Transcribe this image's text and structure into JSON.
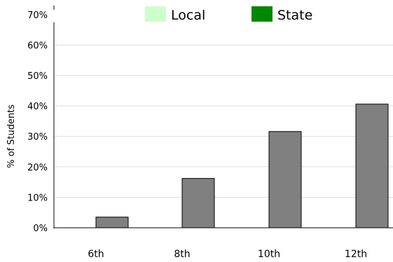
{
  "chart_data": {
    "type": "bar",
    "ylabel": "% of Students",
    "yticks": [
      "0%",
      "10%",
      "20%",
      "30%",
      "40%",
      "50%",
      "60%",
      "70%"
    ],
    "ylim": [
      0,
      70
    ],
    "grid": true,
    "legend_position": "top",
    "legend": [
      {
        "name": "Local",
        "color": "#ccffcc"
      },
      {
        "name": "State",
        "color": "#008800"
      }
    ],
    "categories": [
      "6th",
      "8th",
      "10th",
      "12th"
    ],
    "series": [
      {
        "values": [
          3.5,
          16.2,
          31.6,
          40.6
        ],
        "color": "#808080"
      }
    ]
  }
}
